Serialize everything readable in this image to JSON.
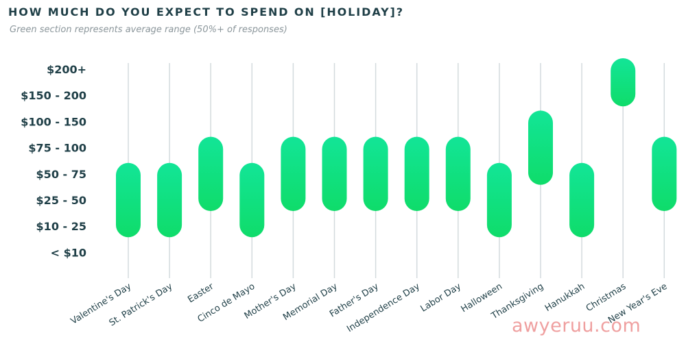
{
  "header": {
    "title": "HOW MUCH DO YOU EXPECT TO SPEND ON [HOLIDAY]?",
    "subtitle": "Green section represents average range (50%+ of responses)"
  },
  "watermark": "awyeruu.com",
  "colors": {
    "bar_top": "#12e597",
    "bar_bottom": "#0fdc6a",
    "grid": "#d3dadd",
    "label": "#1f3f47"
  },
  "chart_data": {
    "type": "range-bar",
    "title": "HOW MUCH DO YOU EXPECT TO SPEND ON [HOLIDAY]?",
    "subtitle": "Green section represents average range (50%+ of responses)",
    "y_categories": [
      "< $10",
      "$10 - 25",
      "$25 - 50",
      "$50 - 75",
      "$75 - 100",
      "$100 - 150",
      "$150 - 200",
      "$200+"
    ],
    "categories": [
      "Valentine's Day",
      "St. Patrick's Day",
      "Easter",
      "Cinco de Mayo",
      "Mother's Day",
      "Memorial Day",
      "Father's Day",
      "Independence Day",
      "Labor Day",
      "Halloween",
      "Thanksgiving",
      "Hanukkah",
      "Christmas",
      "New Year's Eve"
    ],
    "ranges": [
      [
        "$10 - 25",
        "$50 - 75"
      ],
      [
        "$10 - 25",
        "$50 - 75"
      ],
      [
        "$25 - 50",
        "$75 - 100"
      ],
      [
        "$10 - 25",
        "$50 - 75"
      ],
      [
        "$25 - 50",
        "$75 - 100"
      ],
      [
        "$25 - 50",
        "$75 - 100"
      ],
      [
        "$25 - 50",
        "$75 - 100"
      ],
      [
        "$25 - 50",
        "$75 - 100"
      ],
      [
        "$25 - 50",
        "$75 - 100"
      ],
      [
        "$10 - 25",
        "$50 - 75"
      ],
      [
        "$50 - 75",
        "$100 - 150"
      ],
      [
        "$10 - 25",
        "$50 - 75"
      ],
      [
        "$150 - 200",
        "$200+"
      ],
      [
        "$25 - 50",
        "$75 - 100"
      ]
    ],
    "grid": "vertical",
    "legend": "none"
  }
}
